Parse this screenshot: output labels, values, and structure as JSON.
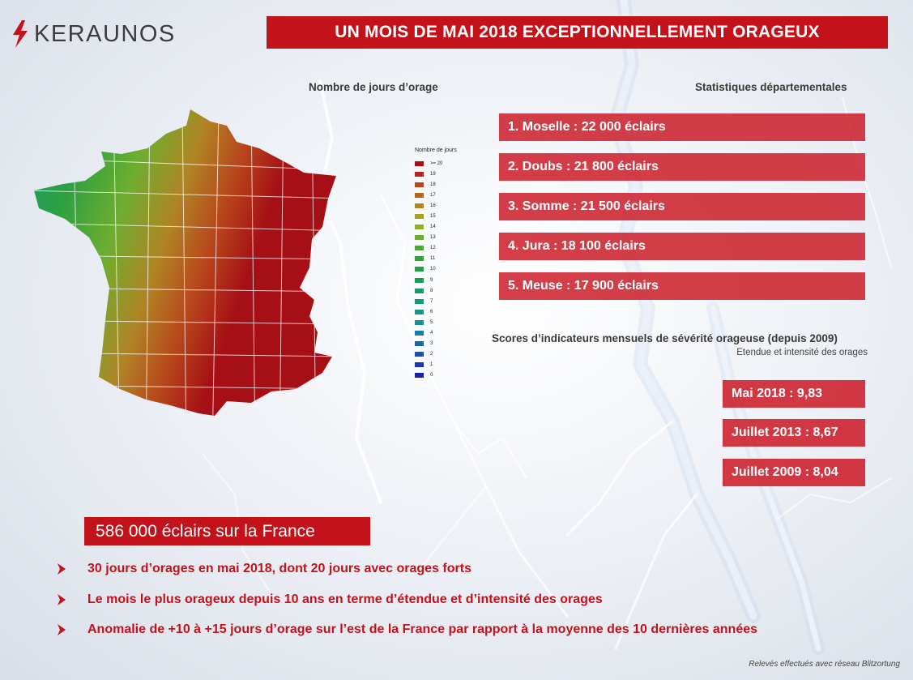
{
  "logo": {
    "text": "KERAUNOS"
  },
  "title": "UN MOIS DE MAI 2018 EXCEPTIONNELLEMENT ORAGEUX",
  "map": {
    "heading": "Nombre de jours d’orage",
    "legend_title": "Nombre de jours",
    "legend": [
      {
        "label": ">= 20",
        "color": "#a50f15"
      },
      {
        "label": "19",
        "color": "#b3261e"
      },
      {
        "label": "18",
        "color": "#b8461c"
      },
      {
        "label": "17",
        "color": "#b5651d"
      },
      {
        "label": "16",
        "color": "#b08424"
      },
      {
        "label": "15",
        "color": "#a3a126"
      },
      {
        "label": "14",
        "color": "#8fae2c"
      },
      {
        "label": "13",
        "color": "#6fad2f"
      },
      {
        "label": "12",
        "color": "#4fa836"
      },
      {
        "label": "11",
        "color": "#34a33c"
      },
      {
        "label": "10",
        "color": "#21a045"
      },
      {
        "label": "9",
        "color": "#1c9c55"
      },
      {
        "label": "8",
        "color": "#1c9a66"
      },
      {
        "label": "7",
        "color": "#1b9877"
      },
      {
        "label": "6",
        "color": "#1b9488"
      },
      {
        "label": "5",
        "color": "#1b8e96"
      },
      {
        "label": "4",
        "color": "#1a7ea0"
      },
      {
        "label": "3",
        "color": "#1a66a6"
      },
      {
        "label": "2",
        "color": "#1a4fab"
      },
      {
        "label": "1",
        "color": "#1937ae"
      },
      {
        "label": "0",
        "color": "#1522a6"
      }
    ]
  },
  "departments": {
    "heading": "Statistiques départementales",
    "items": [
      "1. Moselle : 22 000 éclairs",
      "2. Doubs : 21 800 éclairs",
      "3. Somme : 21 500 éclairs",
      "4. Jura : 18 100 éclairs",
      "5. Meuse : 17 900 éclairs"
    ]
  },
  "scores": {
    "heading": "Scores d’indicateurs mensuels de sévérité orageuse (depuis 2009)",
    "subheading": "Etendue et intensité des orages",
    "items": [
      "Mai 2018 : 9,83",
      "Juillet 2013 : 8,67",
      "Juillet 2009 : 8,04"
    ]
  },
  "total": "586 000 éclairs sur la France",
  "bullets": [
    "30 jours d’orages en mai 2018, dont 20 jours avec orages forts",
    "Le mois le plus orageux depuis 10 ans en terme d’étendue et d’intensité des orages",
    "Anomalie de +10 à +15 jours d’orage sur l’est de la France par rapport à la moyenne des 10 dernières années"
  ],
  "footer": "Relevés effectués avec réseau Blitzortung",
  "colors": {
    "accent": "#c4121b",
    "box": "#cc1e2a"
  }
}
